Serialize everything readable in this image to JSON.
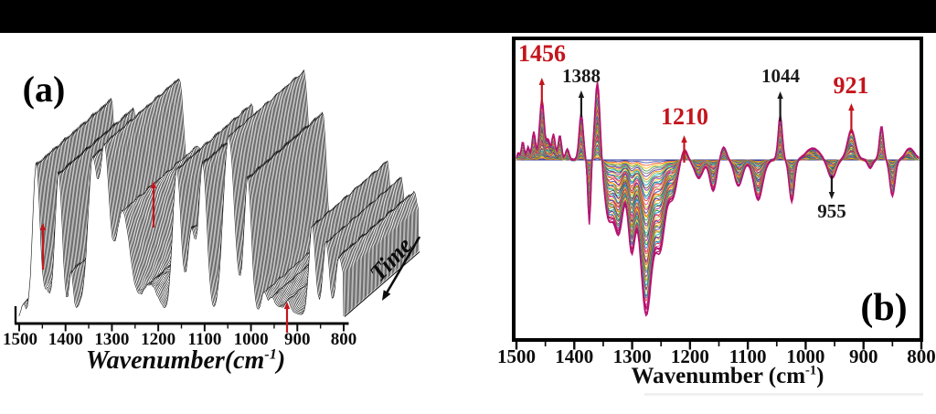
{
  "figure": {
    "background": "#ffffff",
    "top_bar_color": "#000000",
    "red_accent": "#c4151c",
    "panel_a": {
      "label": "(a)",
      "xlabel": {
        "main": "Wavenumber(cm",
        "sup": "-1",
        "close": ")"
      },
      "time_label": "Time",
      "x_ticks": [
        1500,
        1400,
        1300,
        1200,
        1100,
        1000,
        900,
        800
      ]
    },
    "panel_b": {
      "label": "(b)",
      "xlabel": {
        "main": "Wavenumber (cm",
        "sup": "-1",
        "close": ")"
      },
      "x_ticks": [
        1500,
        1400,
        1300,
        1200,
        1100,
        1000,
        900,
        800
      ]
    }
  },
  "chart_data": [
    {
      "type": "line",
      "panel": "a",
      "description": "3D waterfall stack of time-resolved IR spectra, black wireframe traces offset along a Time axis",
      "x_axis": {
        "label": "Wavenumber(cm-1)",
        "range": [
          1500,
          800
        ],
        "ticks": [
          1500,
          1400,
          1300,
          1200,
          1100,
          1000,
          900,
          800
        ],
        "minor_step": 50
      },
      "z_axis": {
        "label": "Time",
        "direction": "front-to-back"
      },
      "n_traces": 64,
      "marked_bands_red_arrows": [
        1456,
        1210,
        921
      ],
      "trace_color": "#161616",
      "peaks": [
        [
          1491,
          14,
          4
        ],
        [
          1463,
          168,
          8
        ],
        [
          1440,
          26,
          6
        ],
        [
          1415,
          158,
          8
        ],
        [
          1388,
          50,
          4.5
        ],
        [
          1368,
          12,
          8
        ],
        [
          1342,
          168,
          10
        ],
        [
          1316,
          178,
          10
        ],
        [
          1277,
          115,
          16
        ],
        [
          1218,
          35,
          18
        ],
        [
          1160,
          162,
          9
        ],
        [
          1129,
          92,
          8
        ],
        [
          1104,
          168,
          9
        ],
        [
          1048,
          198,
          12
        ],
        [
          1007,
          152,
          8
        ],
        [
          972,
          22,
          6
        ],
        [
          955,
          12,
          6
        ],
        [
          940,
          10,
          25
        ],
        [
          920,
          10,
          5
        ],
        [
          868,
          100,
          7
        ],
        [
          838,
          82,
          7
        ],
        [
          812,
          48,
          6
        ],
        [
          800,
          38,
          9
        ]
      ]
    },
    {
      "type": "line",
      "panel": "b",
      "description": "Family of overlaid difference IR spectra growing with time; positive and negative bands about a zero line",
      "x_axis": {
        "label": "Wavenumber (cm-1)",
        "range": [
          1500,
          800
        ],
        "ticks": [
          1500,
          1400,
          1300,
          1200,
          1100,
          1000,
          900,
          800
        ],
        "minor_step": 50
      },
      "n_traces": 56,
      "annotations": [
        {
          "text": "1456",
          "wn": 1456,
          "color": "#c4151c",
          "arrow": "up"
        },
        {
          "text": "1388",
          "wn": 1388,
          "color": "#1a1a1a",
          "arrow": "up"
        },
        {
          "text": "1210",
          "wn": 1210,
          "color": "#c4151c",
          "arrow": "up"
        },
        {
          "text": "1044",
          "wn": 1044,
          "color": "#1a1a1a",
          "arrow": "up"
        },
        {
          "text": "921",
          "wn": 921,
          "color": "#c4151c",
          "arrow": "up"
        },
        {
          "text": "955",
          "wn": 955,
          "color": "#1a1a1a",
          "arrow": "down"
        }
      ],
      "bands_positive": [
        [
          1497,
          8,
          2
        ],
        [
          1489,
          20,
          2.5
        ],
        [
          1480,
          14,
          2.5
        ],
        [
          1470,
          30,
          3
        ],
        [
          1456,
          66,
          4
        ],
        [
          1445,
          22,
          3
        ],
        [
          1436,
          28,
          3
        ],
        [
          1425,
          28,
          3
        ],
        [
          1412,
          12,
          3
        ],
        [
          1388,
          52,
          3.5
        ],
        [
          1360,
          86,
          4.5
        ],
        [
          1210,
          11,
          5
        ],
        [
          1142,
          14,
          5
        ],
        [
          1044,
          50,
          3.5
        ],
        [
          988,
          13,
          12
        ],
        [
          921,
          33,
          7
        ],
        [
          869,
          37,
          3.5
        ],
        [
          820,
          13,
          8
        ]
      ],
      "bands_negative": [
        [
          1374,
          -72,
          2.5
        ],
        [
          1341,
          -60,
          7
        ],
        [
          1323,
          -80,
          8
        ],
        [
          1301,
          -95,
          6
        ],
        [
          1276,
          -168,
          10
        ],
        [
          1251,
          -92,
          9
        ],
        [
          1229,
          -38,
          7
        ],
        [
          1185,
          -20,
          7
        ],
        [
          1160,
          -33,
          6
        ],
        [
          1116,
          -29,
          7
        ],
        [
          1082,
          -43,
          8
        ],
        [
          1024,
          -46,
          4.5
        ],
        [
          955,
          -21,
          7
        ],
        [
          888,
          -9,
          4
        ],
        [
          850,
          -40,
          4.5
        ]
      ],
      "envelope_colors": [
        "#99105e",
        "#c21878",
        "#a80f68",
        "#b81271"
      ],
      "zero_line_color": "#283593",
      "palette": [
        "#e8468f",
        "#8e24aa",
        "#5e35b1",
        "#3949ab",
        "#1e88e5",
        "#00acc1",
        "#43a047",
        "#c0ca33",
        "#fdd835",
        "#fb8c00",
        "#f4511e",
        "#e53935",
        "#6d4c41",
        "#757575",
        "#d81b60",
        "#00897b",
        "#7cb342",
        "#ffb300"
      ]
    }
  ]
}
